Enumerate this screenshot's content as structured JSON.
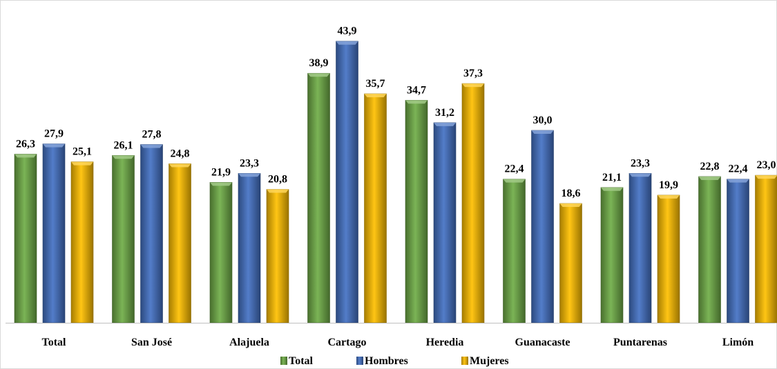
{
  "chart_data": {
    "type": "bar",
    "title": "",
    "xlabel": "",
    "ylabel": "",
    "ylim": [
      0,
      50
    ],
    "grid": false,
    "legend_position": "bottom",
    "categories": [
      "Total",
      "San José",
      "Alajuela",
      "Cartago",
      "Heredia",
      "Guanacaste",
      "Puntarenas",
      "Limón"
    ],
    "series": [
      {
        "name": "Total",
        "color": "#70ad47",
        "values": [
          26.3,
          26.1,
          21.9,
          38.9,
          34.7,
          22.4,
          21.1,
          22.8
        ],
        "labels": [
          "26,3",
          "26,1",
          "21,9",
          "38,9",
          "34,7",
          "22,4",
          "21,1",
          "22,8"
        ]
      },
      {
        "name": "Hombres",
        "color": "#4472c4",
        "values": [
          27.9,
          27.8,
          23.3,
          43.9,
          31.2,
          30.0,
          23.3,
          22.4
        ],
        "labels": [
          "27,9",
          "27,8",
          "23,3",
          "43,9",
          "31,2",
          "30,0",
          "23,3",
          "22,4"
        ]
      },
      {
        "name": "Mujeres",
        "color": "#ffc000",
        "values": [
          25.1,
          24.8,
          20.8,
          35.7,
          37.3,
          18.6,
          19.9,
          23.0
        ],
        "labels": [
          "25,1",
          "24,8",
          "20,8",
          "35,7",
          "37,3",
          "18,6",
          "19,9",
          "23,0"
        ]
      }
    ]
  }
}
